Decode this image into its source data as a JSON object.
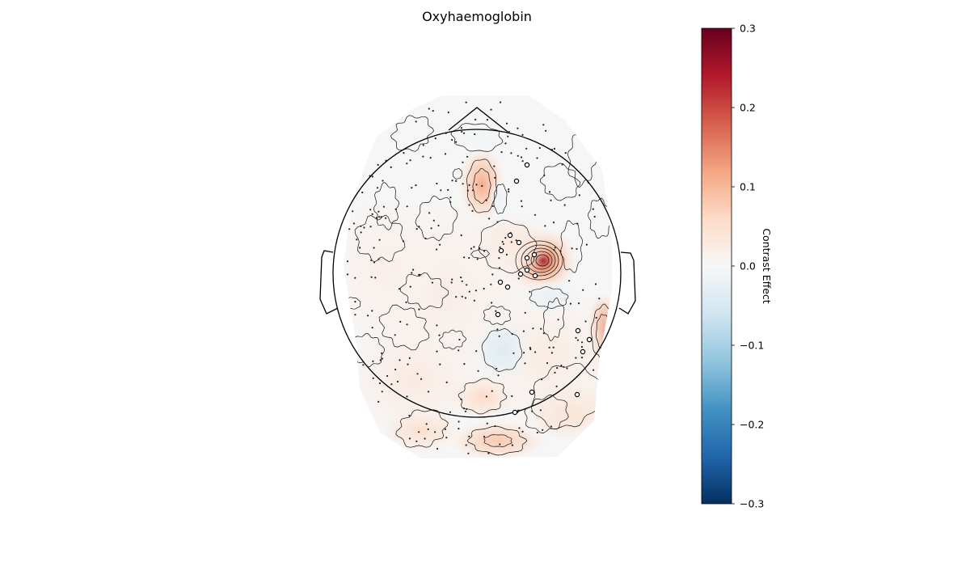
{
  "chart_data": {
    "type": "heatmap",
    "subtype": "scalp-topomap",
    "title": "Oxyhaemoglobin",
    "colorbar": {
      "label": "Contrast Effect",
      "range": [
        -0.3,
        0.3
      ],
      "ticks": [
        0.3,
        0.2,
        0.1,
        0.0,
        -0.1,
        -0.2,
        -0.3
      ],
      "tick_labels": [
        "0.3",
        "0.2",
        "0.1",
        "0.0",
        "−0.1",
        "−0.2",
        "−0.3"
      ],
      "colormap": "RdBu_r",
      "stops": [
        "#053061",
        "#2166ac",
        "#4393c3",
        "#92c5de",
        "#d1e5f0",
        "#f7f7f7",
        "#fddbc7",
        "#f4a582",
        "#d6604d",
        "#b2182b",
        "#67001f"
      ]
    },
    "peak_effect": 0.27,
    "min_effect": -0.04,
    "highlighted_channel_count": 19,
    "sensor_marker": "dot"
  }
}
